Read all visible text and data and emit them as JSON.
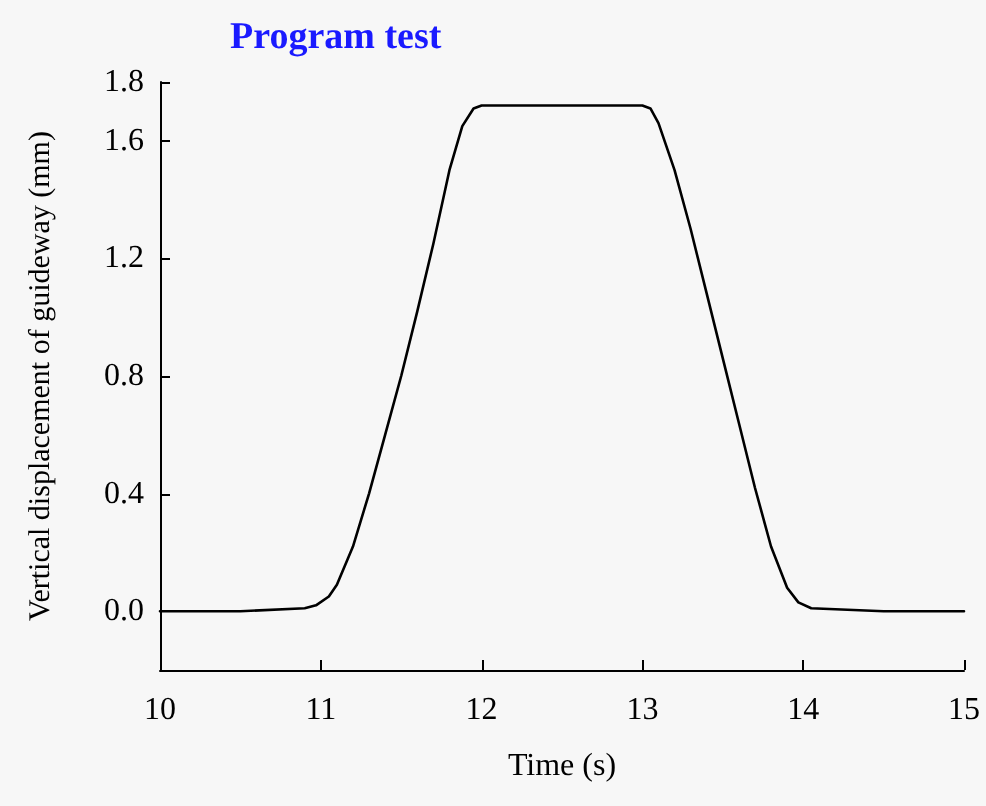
{
  "chart_data": {
    "type": "line",
    "title": "Program test",
    "xlabel": "Time (s)",
    "ylabel": "Vertical displacement of guideway (mm)",
    "x": [
      10,
      10.5,
      10.9,
      10.97,
      11.05,
      11.1,
      11.2,
      11.3,
      11.4,
      11.5,
      11.6,
      11.7,
      11.8,
      11.88,
      11.95,
      12.0,
      12.5,
      13.0,
      13.05,
      13.1,
      13.2,
      13.3,
      13.4,
      13.5,
      13.6,
      13.7,
      13.8,
      13.9,
      13.97,
      14.05,
      14.5,
      15
    ],
    "series": [
      {
        "color": "#000000",
        "values": [
          0,
          0,
          0.01,
          0.02,
          0.05,
          0.09,
          0.22,
          0.4,
          0.6,
          0.8,
          1.02,
          1.25,
          1.5,
          1.65,
          1.71,
          1.72,
          1.72,
          1.72,
          1.71,
          1.66,
          1.5,
          1.3,
          1.08,
          0.86,
          0.64,
          0.42,
          0.22,
          0.08,
          0.03,
          0.01,
          0.0,
          0.0
        ]
      }
    ],
    "xlim": [
      10,
      15
    ],
    "xticks": [
      10,
      11,
      12,
      13,
      14,
      15
    ],
    "ylim": [
      -0.2,
      1.8
    ],
    "yticks": [
      {
        "value": 0,
        "label": "0.0"
      },
      0.4,
      0.8,
      1.2,
      1.6,
      1.8
    ],
    "grid": false,
    "marker": "none",
    "line_style": "solid"
  }
}
